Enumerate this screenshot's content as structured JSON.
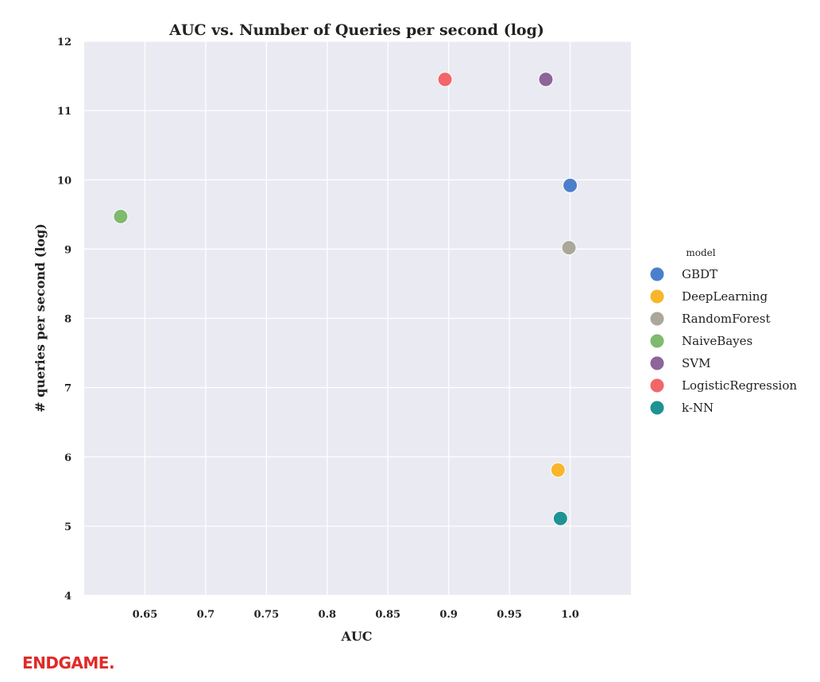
{
  "logo": {
    "text": "ENDGAME.",
    "color": "#e02b27"
  },
  "colors": {
    "panel_bg": "#eaeaf2",
    "grid": "#ffffff",
    "text": "#222222"
  },
  "chart_data": {
    "type": "scatter",
    "title": "AUC vs. Number of Queries per second (log)",
    "xlabel": "AUC",
    "ylabel": "# queries per second (log)",
    "xlim": [
      0.6,
      1.05
    ],
    "ylim": [
      4,
      12
    ],
    "xticks": [
      "0.65",
      "0.7",
      "0.75",
      "0.8",
      "0.85",
      "0.9",
      "0.95",
      "1.0"
    ],
    "yticks": [
      "4",
      "5",
      "6",
      "7",
      "8",
      "9",
      "10",
      "11",
      "12"
    ],
    "grid": true,
    "legend": {
      "title": "model",
      "placement": "right"
    },
    "series": [
      {
        "name": "GBDT",
        "color": "#4c7fcb",
        "x": 1.0,
        "y": 9.92
      },
      {
        "name": "DeepLearning",
        "color": "#f8b62b",
        "x": 0.99,
        "y": 5.81
      },
      {
        "name": "RandomForest",
        "color": "#aba89a",
        "x": 0.999,
        "y": 9.02
      },
      {
        "name": "NaiveBayes",
        "color": "#7fba6f",
        "x": 0.63,
        "y": 9.47
      },
      {
        "name": "SVM",
        "color": "#8c6599",
        "x": 0.98,
        "y": 11.45
      },
      {
        "name": "LogisticRegression",
        "color": "#f2666a",
        "x": 0.897,
        "y": 11.45
      },
      {
        "name": "k-NN",
        "color": "#1f9294",
        "x": 0.992,
        "y": 5.11
      }
    ]
  }
}
